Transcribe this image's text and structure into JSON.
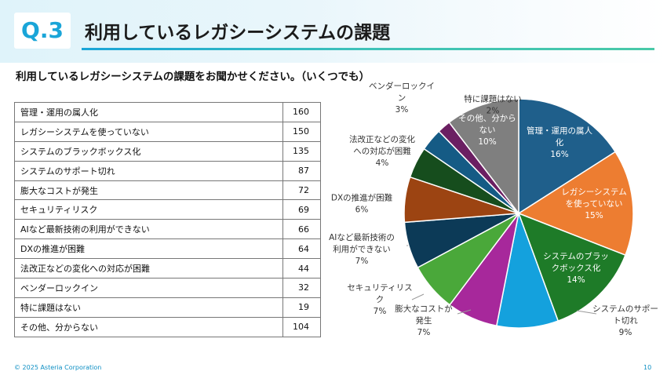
{
  "header": {
    "question_no": "Q.3",
    "title": "利用しているレガシーシステムの課題"
  },
  "question": "利用しているレガシーシステムの課題をお聞かせください。（いくつでも）",
  "table": {
    "rows": [
      {
        "label": "管理・運用の属人化",
        "value": "160"
      },
      {
        "label": "レガシーシステムを使っていない",
        "value": "150"
      },
      {
        "label": "システムのブラックボックス化",
        "value": "135"
      },
      {
        "label": "システムのサポート切れ",
        "value": "87"
      },
      {
        "label": "膨大なコストが発生",
        "value": "72"
      },
      {
        "label": "セキュリティリスク",
        "value": "69"
      },
      {
        "label": "AIなど最新技術の利用ができない",
        "value": "66"
      },
      {
        "label": "DXの推進が困難",
        "value": "64"
      },
      {
        "label": "法改正などの変化への対応が困難",
        "value": "44"
      },
      {
        "label": "ベンダーロックイン",
        "value": "32"
      },
      {
        "label": "特に課題はない",
        "value": "19"
      },
      {
        "label": "その他、分からない",
        "value": "104"
      }
    ]
  },
  "chart_data": {
    "type": "pie",
    "slices": [
      {
        "label_lines": [
          "管理・運用の属人",
          "化",
          "16%"
        ],
        "value": 160,
        "percent": 16,
        "color": "#1f5f8b"
      },
      {
        "label_lines": [
          "レガシーシステム",
          "を使っていない",
          "15%"
        ],
        "value": 150,
        "percent": 15,
        "color": "#ed7d31"
      },
      {
        "label_lines": [
          "システムのブラッ",
          "クボックス化",
          "14%"
        ],
        "value": 135,
        "percent": 14,
        "color": "#1e7b28"
      },
      {
        "label_lines": [
          "システムのサポー",
          "ト切れ",
          "9%"
        ],
        "value": 87,
        "percent": 9,
        "color": "#14a1dd"
      },
      {
        "label_lines": [
          "膨大なコストが",
          "発生",
          "7%"
        ],
        "value": 72,
        "percent": 7,
        "color": "#a7289b"
      },
      {
        "label_lines": [
          "セキュリティリス",
          "ク",
          "7%"
        ],
        "value": 69,
        "percent": 7,
        "color": "#4aa83a"
      },
      {
        "label_lines": [
          "AIなど最新技術の",
          "利用ができない",
          "7%"
        ],
        "value": 66,
        "percent": 7,
        "color": "#0c3a57"
      },
      {
        "label_lines": [
          "DXの推進が困難",
          "6%"
        ],
        "value": 64,
        "percent": 6,
        "color": "#9c4412"
      },
      {
        "label_lines": [
          "法改正などの変化",
          "への対応が困難",
          "4%"
        ],
        "value": 44,
        "percent": 4,
        "color": "#164d1d"
      },
      {
        "label_lines": [
          "ベンダーロックイ",
          "ン",
          "3%"
        ],
        "value": 32,
        "percent": 3,
        "color": "#155b85"
      },
      {
        "label_lines": [
          "特に課題はない",
          "2%"
        ],
        "value": 19,
        "percent": 2,
        "color": "#6b1f62"
      },
      {
        "label_lines": [
          "その他、分から",
          "ない",
          "10%"
        ],
        "value": 104,
        "percent": 10,
        "color": "#7f7f7f"
      }
    ]
  },
  "footer": {
    "copyright": "© 2025 Asteria Corporation",
    "page": "10"
  }
}
